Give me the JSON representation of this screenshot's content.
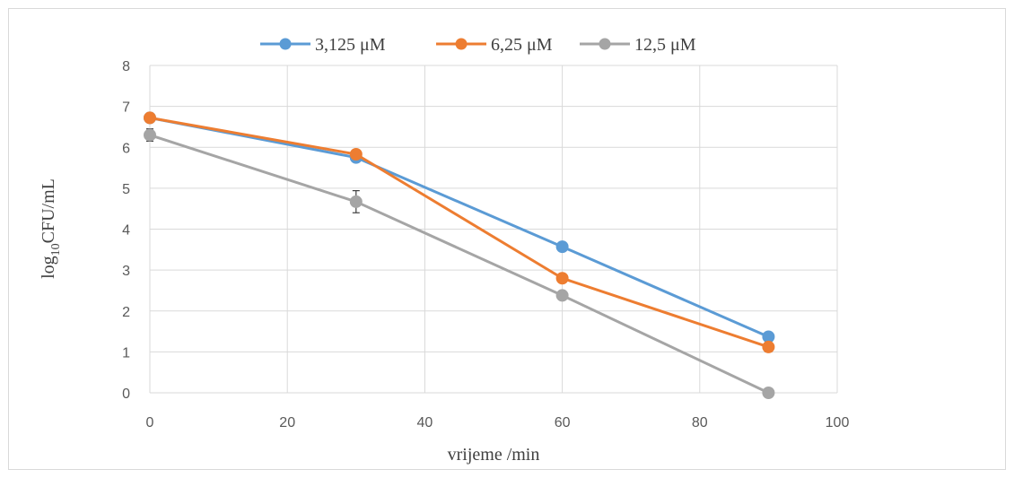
{
  "chart_data": {
    "type": "line",
    "x": [
      0,
      30,
      60,
      90
    ],
    "series": [
      {
        "name": "3,125 μM",
        "color": "#5b9bd5",
        "values": [
          6.72,
          5.75,
          3.57,
          1.37
        ],
        "errors": [
          0.04,
          0.05,
          0.05,
          0.05
        ]
      },
      {
        "name": "6,25 μM",
        "color": "#ed7d31",
        "values": [
          6.72,
          5.83,
          2.8,
          1.12
        ],
        "errors": [
          0.04,
          0.06,
          0.05,
          0.12
        ]
      },
      {
        "name": "12,5 μM",
        "color": "#a5a5a5",
        "values": [
          6.3,
          4.67,
          2.38,
          0.0
        ],
        "errors": [
          0.15,
          0.27,
          0.05,
          0.0
        ]
      }
    ],
    "xlabel": "vrijeme /min",
    "ylabel": {
      "base": "log",
      "subscript": "10",
      "rest": "CFU/mL"
    },
    "xlim": [
      0,
      100
    ],
    "ylim": [
      0,
      8
    ],
    "xticks": [
      "0",
      "20",
      "40",
      "60",
      "80",
      "100"
    ],
    "yticks": [
      "0",
      "1",
      "2",
      "3",
      "4",
      "5",
      "6",
      "7",
      "8"
    ],
    "grid": true,
    "legend_position": "top-center",
    "gridline_color": "#d9d9d9"
  }
}
